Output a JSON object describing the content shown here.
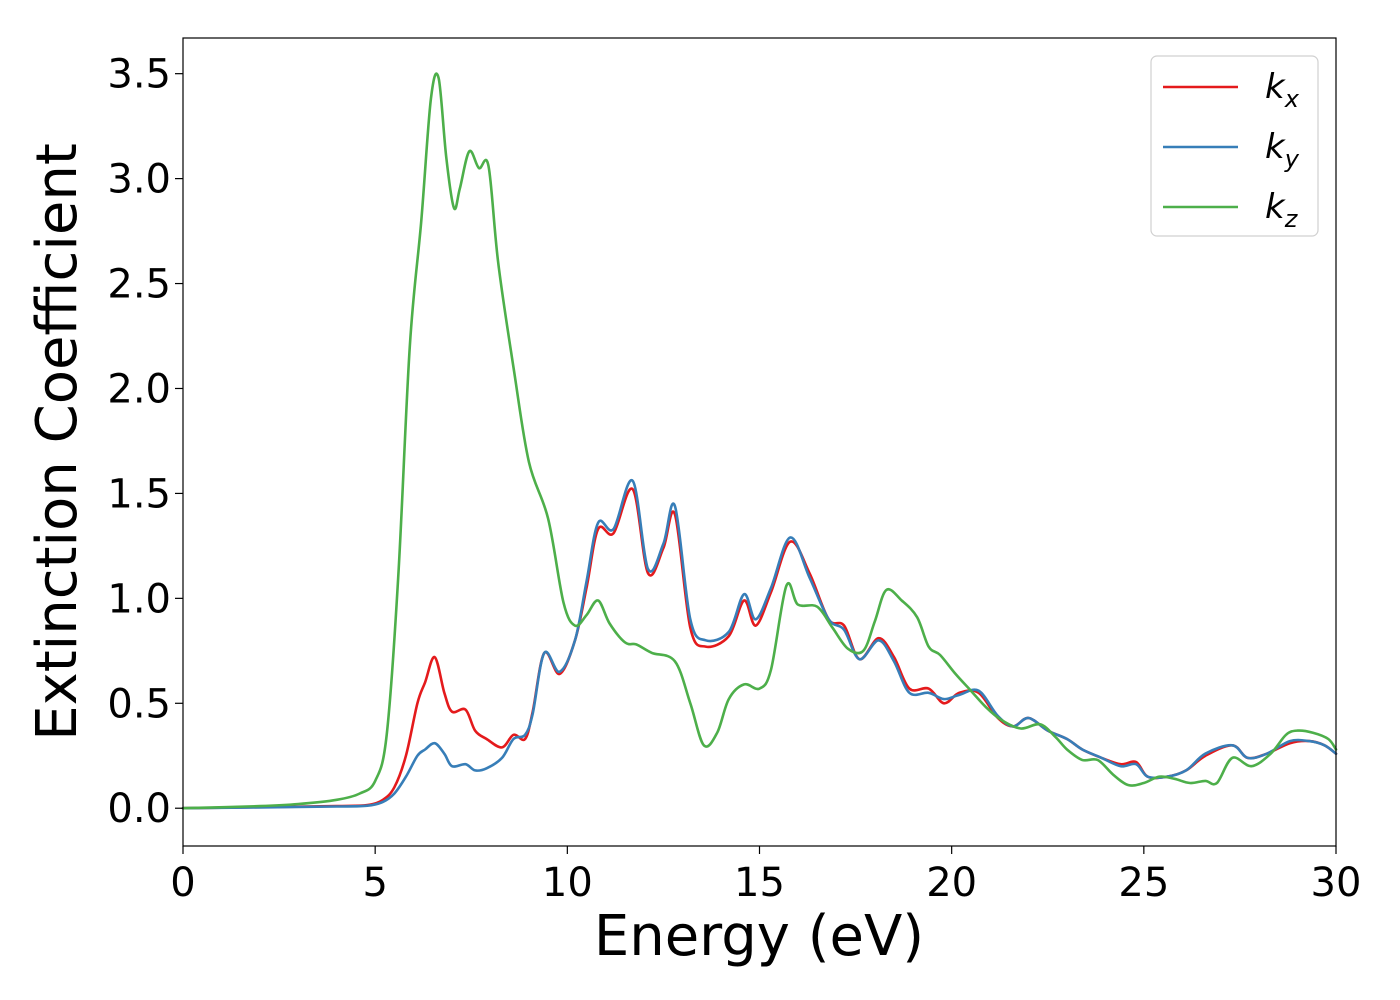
{
  "chart_data": {
    "type": "line",
    "xlabel": "Energy (eV)",
    "ylabel": "Extinction Coefficient",
    "xlim": [
      0,
      30
    ],
    "ylim": [
      -0.18,
      3.67
    ],
    "xticks": [
      0,
      5,
      10,
      15,
      20,
      25,
      30
    ],
    "xtick_labels": [
      "0",
      "5",
      "10",
      "15",
      "20",
      "25",
      "30"
    ],
    "yticks": [
      0.0,
      0.5,
      1.0,
      1.5,
      2.0,
      2.5,
      3.0,
      3.5
    ],
    "ytick_labels": [
      "0.0",
      "0.5",
      "1.0",
      "1.5",
      "2.0",
      "2.5",
      "3.0",
      "3.5"
    ],
    "grid": false,
    "legend_position": "top-right",
    "series": [
      {
        "name": "k_x",
        "label_main": "k",
        "label_sub": "x",
        "color": "#e41a1c",
        "x": [
          0,
          2,
          4,
          4.8,
          5.2,
          5.5,
          5.8,
          6.1,
          6.3,
          6.55,
          6.8,
          7.0,
          7.35,
          7.6,
          7.9,
          8.3,
          8.6,
          8.9,
          9.1,
          9.4,
          9.8,
          10.2,
          10.5,
          10.8,
          11.2,
          11.7,
          12.1,
          12.5,
          12.8,
          13.2,
          13.6,
          14.2,
          14.6,
          14.9,
          15.3,
          15.8,
          16.3,
          16.8,
          17.2,
          17.6,
          18.1,
          18.5,
          18.9,
          19.4,
          19.8,
          20.2,
          20.7,
          21.2,
          21.6,
          22.0,
          22.5,
          23.0,
          23.4,
          23.9,
          24.4,
          24.8,
          25.1,
          25.6,
          26.1,
          26.6,
          27.3,
          27.7,
          28.2,
          28.8,
          29.3,
          29.7,
          30.0
        ],
        "y": [
          0.0,
          0.005,
          0.01,
          0.015,
          0.04,
          0.1,
          0.25,
          0.5,
          0.6,
          0.72,
          0.55,
          0.46,
          0.47,
          0.37,
          0.33,
          0.29,
          0.35,
          0.33,
          0.46,
          0.74,
          0.64,
          0.8,
          1.05,
          1.33,
          1.31,
          1.52,
          1.12,
          1.24,
          1.4,
          0.86,
          0.77,
          0.82,
          0.99,
          0.87,
          1.03,
          1.27,
          1.12,
          0.9,
          0.87,
          0.71,
          0.81,
          0.72,
          0.57,
          0.57,
          0.5,
          0.55,
          0.55,
          0.43,
          0.39,
          0.43,
          0.37,
          0.33,
          0.28,
          0.24,
          0.21,
          0.22,
          0.15,
          0.15,
          0.18,
          0.25,
          0.3,
          0.24,
          0.26,
          0.31,
          0.32,
          0.3,
          0.26
        ]
      },
      {
        "name": "k_y",
        "label_main": "k",
        "label_sub": "y",
        "color": "#377eb8",
        "x": [
          0,
          2,
          4,
          4.8,
          5.2,
          5.5,
          5.8,
          6.1,
          6.3,
          6.55,
          6.8,
          7.0,
          7.35,
          7.6,
          7.9,
          8.3,
          8.6,
          8.9,
          9.1,
          9.4,
          9.8,
          10.2,
          10.5,
          10.8,
          11.2,
          11.7,
          12.1,
          12.5,
          12.8,
          13.2,
          13.6,
          14.2,
          14.6,
          14.9,
          15.3,
          15.8,
          16.3,
          16.8,
          17.2,
          17.6,
          18.1,
          18.5,
          18.9,
          19.4,
          19.8,
          20.2,
          20.7,
          21.2,
          21.6,
          22.0,
          22.5,
          23.0,
          23.4,
          23.9,
          24.4,
          24.8,
          25.1,
          25.6,
          26.1,
          26.6,
          27.3,
          27.7,
          28.2,
          28.8,
          29.3,
          29.7,
          30.0
        ],
        "y": [
          0.0,
          0.004,
          0.008,
          0.012,
          0.03,
          0.07,
          0.15,
          0.25,
          0.28,
          0.31,
          0.26,
          0.2,
          0.21,
          0.18,
          0.19,
          0.24,
          0.33,
          0.35,
          0.45,
          0.74,
          0.65,
          0.8,
          1.08,
          1.36,
          1.33,
          1.56,
          1.14,
          1.26,
          1.44,
          0.9,
          0.8,
          0.84,
          1.02,
          0.9,
          1.05,
          1.29,
          1.1,
          0.9,
          0.85,
          0.71,
          0.8,
          0.7,
          0.55,
          0.55,
          0.52,
          0.54,
          0.56,
          0.44,
          0.39,
          0.43,
          0.37,
          0.33,
          0.28,
          0.24,
          0.2,
          0.21,
          0.15,
          0.15,
          0.18,
          0.26,
          0.3,
          0.24,
          0.26,
          0.32,
          0.32,
          0.3,
          0.26
        ]
      },
      {
        "name": "k_z",
        "label_main": "k",
        "label_sub": "z",
        "color": "#4daf4a",
        "x": [
          0,
          2,
          3,
          4,
          4.6,
          5.0,
          5.3,
          5.6,
          5.9,
          6.2,
          6.45,
          6.65,
          6.85,
          7.05,
          7.2,
          7.45,
          7.7,
          7.95,
          8.2,
          8.6,
          9.0,
          9.5,
          9.9,
          10.2,
          10.5,
          10.8,
          11.1,
          11.5,
          11.8,
          12.2,
          12.8,
          13.2,
          13.55,
          13.9,
          14.2,
          14.6,
          15.0,
          15.3,
          15.7,
          16.0,
          16.5,
          16.9,
          17.3,
          17.7,
          18.0,
          18.3,
          18.7,
          19.1,
          19.4,
          19.7,
          20.1,
          20.5,
          20.9,
          21.3,
          21.8,
          22.3,
          22.7,
          23.0,
          23.4,
          23.8,
          24.2,
          24.6,
          25.0,
          25.4,
          25.8,
          26.2,
          26.6,
          26.9,
          27.3,
          27.8,
          28.3,
          28.7,
          29.0,
          29.4,
          29.8,
          30.0
        ],
        "y": [
          0.0,
          0.01,
          0.02,
          0.04,
          0.07,
          0.13,
          0.35,
          1.1,
          2.2,
          2.8,
          3.38,
          3.48,
          3.1,
          2.86,
          2.95,
          3.13,
          3.05,
          3.06,
          2.6,
          2.1,
          1.65,
          1.38,
          0.98,
          0.87,
          0.92,
          0.99,
          0.88,
          0.79,
          0.78,
          0.74,
          0.7,
          0.5,
          0.3,
          0.36,
          0.52,
          0.59,
          0.57,
          0.66,
          1.06,
          0.97,
          0.96,
          0.86,
          0.76,
          0.75,
          0.89,
          1.04,
          0.99,
          0.91,
          0.77,
          0.73,
          0.64,
          0.56,
          0.48,
          0.42,
          0.38,
          0.4,
          0.34,
          0.28,
          0.23,
          0.23,
          0.16,
          0.11,
          0.12,
          0.15,
          0.14,
          0.12,
          0.13,
          0.12,
          0.24,
          0.2,
          0.26,
          0.35,
          0.37,
          0.36,
          0.33,
          0.28
        ]
      }
    ]
  }
}
